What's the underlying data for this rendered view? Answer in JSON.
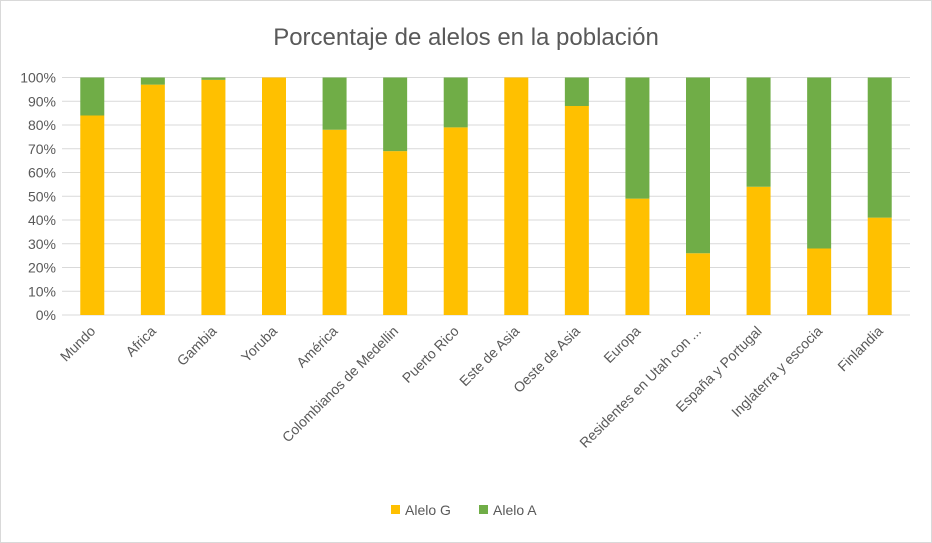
{
  "chart_data": {
    "type": "bar",
    "stacked": "percent",
    "title": "Porcentaje de alelos en la población",
    "xlabel": "",
    "ylabel": "",
    "ylim": [
      0,
      100
    ],
    "yticks": [
      "0%",
      "10%",
      "20%",
      "30%",
      "40%",
      "50%",
      "60%",
      "70%",
      "80%",
      "90%",
      "100%"
    ],
    "grid": true,
    "legend_position": "bottom",
    "categories": [
      "Mundo",
      "Africa",
      "Gambia",
      "Yoruba",
      "América",
      "Colombianos de Medellin",
      "Puerto Rico",
      "Este de Asia",
      "Oeste de Asia",
      "Europa",
      "Residentes en Utah con ...",
      "España y Portugal",
      "Inglaterra y escocia",
      "Finlandia"
    ],
    "series": [
      {
        "name": "Alelo G",
        "color": "#FFC000",
        "values": [
          84,
          97,
          99,
          100,
          78,
          69,
          79,
          100,
          88,
          49,
          26,
          54,
          28,
          41
        ]
      },
      {
        "name": "Alelo A",
        "color": "#70AD47",
        "values": [
          16,
          3,
          1,
          0,
          22,
          31,
          21,
          0,
          12,
          51,
          74,
          46,
          72,
          59
        ]
      }
    ]
  }
}
